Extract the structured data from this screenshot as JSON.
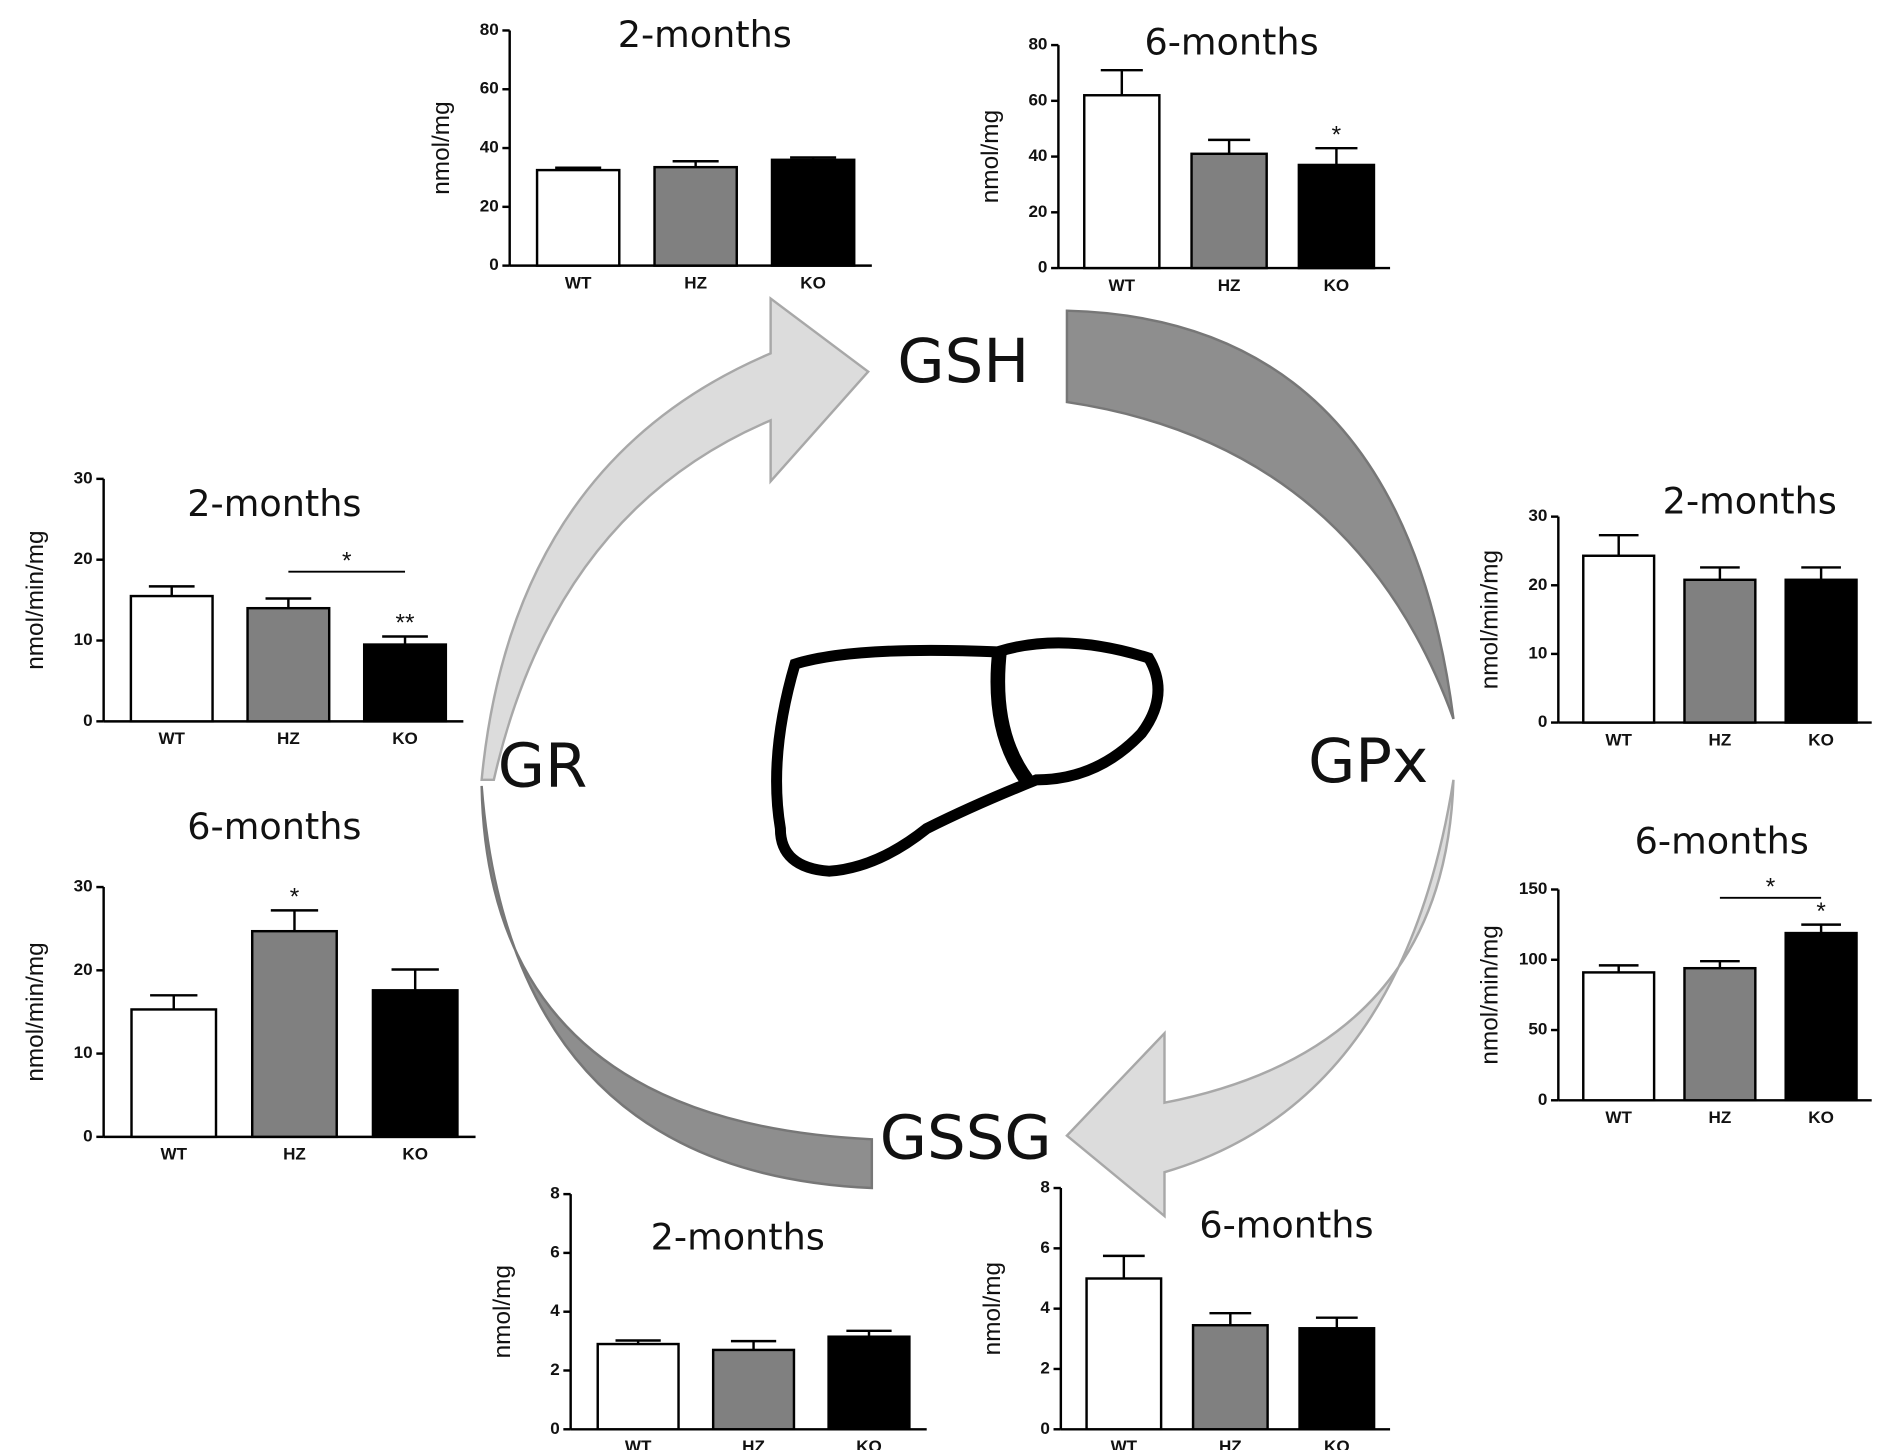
{
  "diagram": {
    "labels": [
      "GSH",
      "GR",
      "GPx",
      "GSSG"
    ]
  },
  "chart_data": [
    {
      "type": "bar",
      "title": "2-months",
      "ylabel": "nmol/mg",
      "categories": [
        "WT",
        "HZ",
        "KO"
      ],
      "values": [
        32.5,
        33.5,
        36
      ],
      "errors": [
        0.8,
        2,
        0.8
      ],
      "colors": [
        "#ffffff",
        "#808080",
        "#000000"
      ],
      "ylim": [
        0,
        80
      ],
      "yticks": [
        0,
        20,
        40,
        60,
        80
      ]
    },
    {
      "type": "bar",
      "title": "6-months",
      "ylabel": "nmol/mg",
      "categories": [
        "WT",
        "HZ",
        "KO"
      ],
      "values": [
        62,
        41,
        37
      ],
      "errors": [
        9,
        5,
        6
      ],
      "colors": [
        "#ffffff",
        "#808080",
        "#000000"
      ],
      "ylim": [
        0,
        80
      ],
      "yticks": [
        0,
        20,
        40,
        60,
        80
      ],
      "significance": [
        null,
        null,
        "*"
      ]
    },
    {
      "type": "bar",
      "title": "2-months",
      "ylabel": "nmol/min/mg",
      "categories": [
        "WT",
        "HZ",
        "KO"
      ],
      "values": [
        15.5,
        14,
        9.5
      ],
      "errors": [
        1.2,
        1.2,
        1
      ],
      "colors": [
        "#ffffff",
        "#808080",
        "#000000"
      ],
      "ylim": [
        0,
        30
      ],
      "yticks": [
        0,
        10,
        20,
        30
      ],
      "significance": [
        null,
        null,
        "**"
      ],
      "comparisons": [
        {
          "between": [
            "HZ",
            "KO"
          ],
          "label": "*"
        }
      ]
    },
    {
      "type": "bar",
      "title": "6-months",
      "ylabel": "nmol/min/mg",
      "categories": [
        "WT",
        "HZ",
        "KO"
      ],
      "values": [
        15.3,
        24.7,
        17.6
      ],
      "errors": [
        1.7,
        2.5,
        2.5
      ],
      "colors": [
        "#ffffff",
        "#808080",
        "#000000"
      ],
      "ylim": [
        0,
        30
      ],
      "yticks": [
        0,
        10,
        20,
        30
      ],
      "significance": [
        null,
        "*",
        null
      ]
    },
    {
      "type": "bar",
      "title": "2-months",
      "ylabel": "nmol/min/mg",
      "categories": [
        "WT",
        "HZ",
        "KO"
      ],
      "values": [
        24.3,
        20.8,
        20.8
      ],
      "errors": [
        3,
        1.8,
        1.8
      ],
      "colors": [
        "#ffffff",
        "#808080",
        "#000000"
      ],
      "ylim": [
        0,
        30
      ],
      "yticks": [
        0,
        10,
        20,
        30
      ]
    },
    {
      "type": "bar",
      "title": "6-months",
      "ylabel": "nmol/min/mg",
      "categories": [
        "WT",
        "HZ",
        "KO"
      ],
      "values": [
        91,
        94,
        119
      ],
      "errors": [
        5,
        5,
        6
      ],
      "colors": [
        "#ffffff",
        "#808080",
        "#000000"
      ],
      "ylim": [
        0,
        150
      ],
      "yticks": [
        0,
        50,
        100,
        150
      ],
      "significance": [
        null,
        null,
        "*"
      ],
      "comparisons": [
        {
          "between": [
            "HZ",
            "KO"
          ],
          "label": "*"
        }
      ]
    },
    {
      "type": "bar",
      "title": "2-months",
      "ylabel": "nmol/mg",
      "categories": [
        "WT",
        "HZ",
        "KO"
      ],
      "values": [
        2.9,
        2.7,
        3.15
      ],
      "errors": [
        0.12,
        0.3,
        0.2
      ],
      "colors": [
        "#ffffff",
        "#808080",
        "#000000"
      ],
      "ylim": [
        0,
        8
      ],
      "yticks": [
        0,
        2,
        4,
        6,
        8
      ]
    },
    {
      "type": "bar",
      "title": "6-months",
      "ylabel": "nmol/mg",
      "categories": [
        "WT",
        "HZ",
        "KO"
      ],
      "values": [
        5.0,
        3.45,
        3.35
      ],
      "errors": [
        0.75,
        0.4,
        0.35
      ],
      "colors": [
        "#ffffff",
        "#808080",
        "#000000"
      ],
      "ylim": [
        0,
        8
      ],
      "yticks": [
        0,
        2,
        4,
        6,
        8
      ]
    }
  ]
}
